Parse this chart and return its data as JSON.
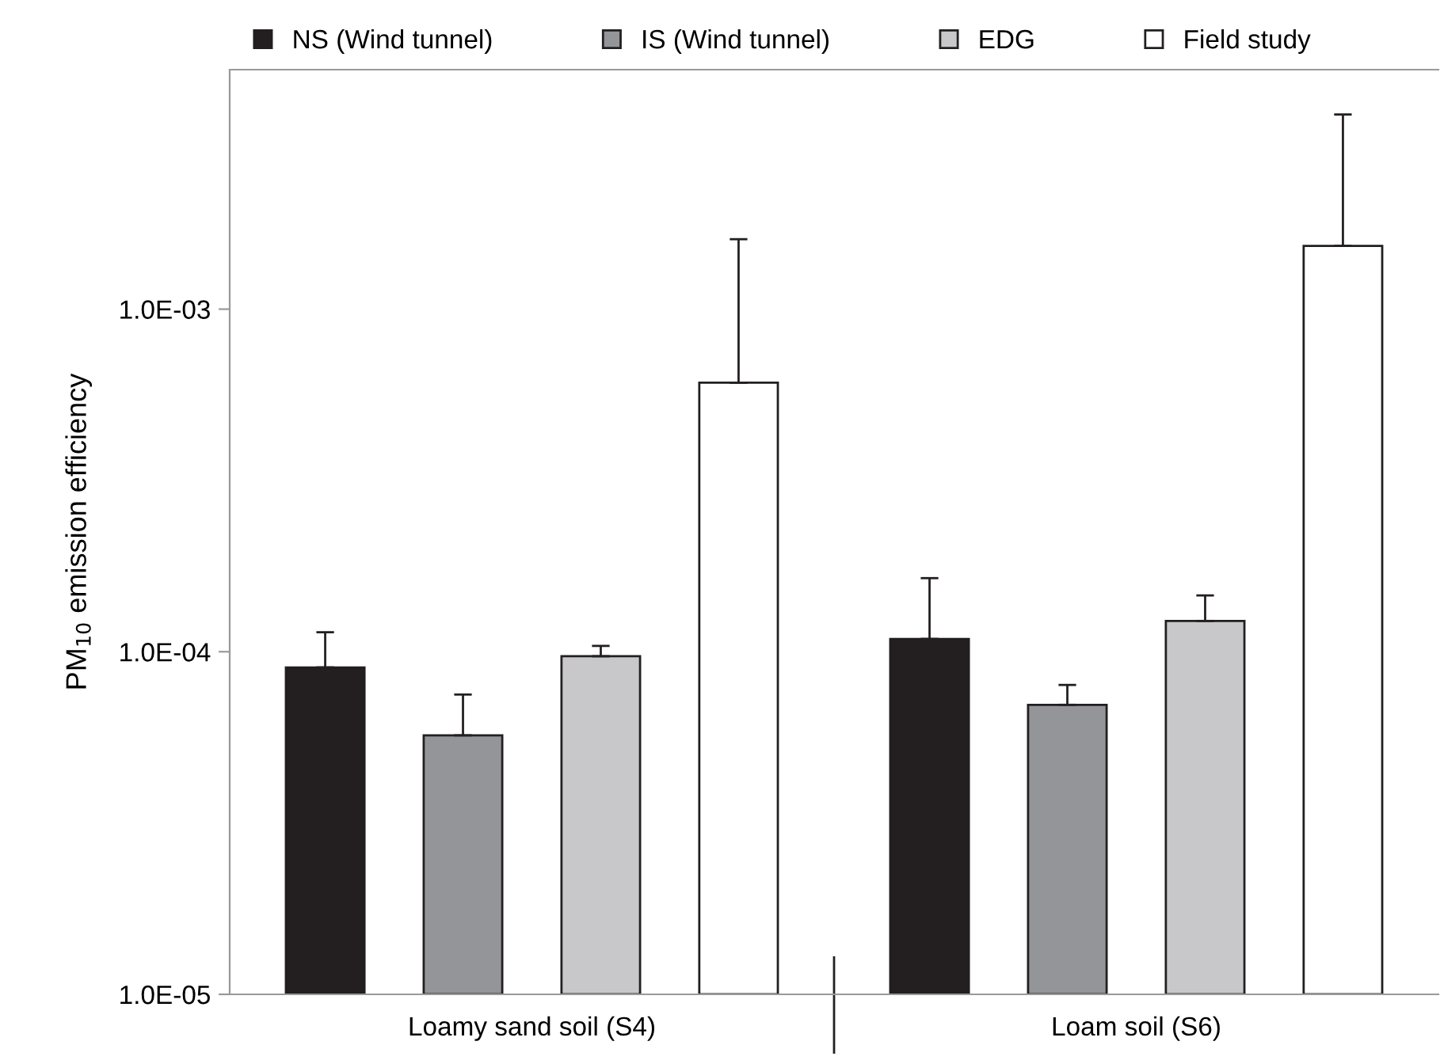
{
  "chart_data": {
    "type": "bar",
    "ylabel": "PM$_{10}$ emission efficiency",
    "log": "y",
    "categories": [
      "Loamy sand soil (S4)",
      "Loam soil (S6)"
    ],
    "series": [
      {
        "name": "NS (Wind tunnel)",
        "color": "#231f20",
        "values": [
          9e-05,
          0.000109
        ],
        "errors": [
          [
            9e-05,
            0.000114
          ],
          [
            0.000109,
            0.000164
          ]
        ]
      },
      {
        "name": "IS (Wind tunnel)",
        "color": "#939598",
        "values": [
          5.7e-05,
          7e-05
        ],
        "errors": [
          [
            5.7e-05,
            7.5e-05
          ],
          [
            7e-05,
            8e-05
          ]
        ]
      },
      {
        "name": "EDG",
        "color": "#c8c8ca",
        "values": [
          9.7e-05,
          0.000123
        ],
        "errors": [
          [
            9.7e-05,
            0.000104
          ],
          [
            0.000123,
            0.000146
          ]
        ]
      },
      {
        "name": "Field study",
        "color": "#ffffff",
        "values": [
          0.00061,
          0.00153
        ],
        "errors": [
          [
            0.00061,
            0.0016
          ],
          [
            0.00153,
            0.0037
          ]
        ]
      }
    ],
    "ylim": [
      1e-05,
      0.005
    ],
    "yticks": [
      {
        "value": 1e-05,
        "label": "1.0E-05"
      },
      {
        "value": 0.0001,
        "label": "1.0E-04"
      },
      {
        "value": 0.001,
        "label": "1.0E-03"
      }
    ],
    "grid": false,
    "legend": "top"
  }
}
